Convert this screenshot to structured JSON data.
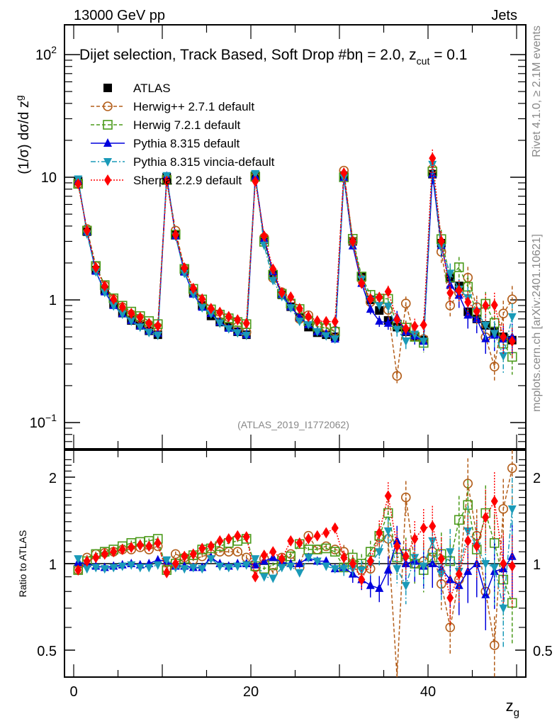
{
  "header": {
    "left_label": "13000 GeV pp",
    "right_label": "Jets"
  },
  "side_labels": {
    "rivet": "Rivet 4.1.0, ≥ 2.1M events",
    "mcplots": "mcplots.cern.ch [arXiv:2401.10621]"
  },
  "chart_data": [
    {
      "type": "line",
      "panel": "main",
      "title": "Dijet selection, Track Based, Soft Drop #bη = 2.0, z_cut = 0.1",
      "title_main": "Dijet selection, Track Based, Soft Drop #bη = 2.0, z",
      "title_sub": "cut",
      "title_end": " = 0.1",
      "xlabel": "z_g",
      "ylabel": "(1/σ) dσ/d z_g",
      "ylabel_main": "(1/σ) dσ/d z",
      "ylabel_sub": "g",
      "yscale": "log",
      "ylim": [
        0.06,
        180
      ],
      "xlim": [
        -1,
        51
      ],
      "ytick_labels": [
        "10^-1",
        "1",
        "10",
        "10^2"
      ],
      "ytick_values": [
        0.1,
        1,
        10,
        100
      ],
      "watermark": "(ATLAS_2019_I1772062)",
      "legend_position": "top-left",
      "x": [
        0.5,
        1.5,
        2.5,
        3.5,
        4.5,
        5.5,
        6.5,
        7.5,
        8.5,
        9.5,
        10.5,
        11.5,
        12.5,
        13.5,
        14.5,
        15.5,
        16.5,
        17.5,
        18.5,
        19.5,
        20.5,
        21.5,
        22.5,
        23.5,
        24.5,
        25.5,
        26.5,
        27.5,
        28.5,
        29.5,
        30.5,
        31.5,
        32.5,
        33.5,
        34.5,
        35.5,
        36.5,
        37.5,
        38.5,
        39.5,
        40.5,
        41.5,
        42.5,
        43.5,
        44.5,
        45.5,
        46.5,
        47.5,
        48.5,
        49.5
      ],
      "series": [
        {
          "name": "ATLAS",
          "style": "data",
          "color": "#000000",
          "values": [
            9.3,
            3.6,
            1.75,
            1.2,
            0.92,
            0.78,
            0.68,
            0.62,
            0.56,
            0.52,
            10.0,
            3.4,
            1.72,
            1.15,
            0.9,
            0.74,
            0.66,
            0.6,
            0.55,
            0.52,
            10.3,
            3.1,
            1.62,
            1.1,
            0.88,
            0.72,
            0.6,
            0.54,
            0.52,
            0.5,
            10.3,
            3.0,
            1.55,
            1.0,
            0.82,
            0.68,
            0.6,
            0.55,
            0.5,
            0.47,
            10.6,
            2.9,
            1.5,
            1.3,
            0.8,
            0.7,
            0.62,
            0.55,
            0.5,
            0.47
          ]
        },
        {
          "name": "Herwig++ 2.7.1 default",
          "style": "dashed",
          "marker": "circle-open",
          "color": "#b35e1a",
          "ratio": [
            0.95,
            1.05,
            1.08,
            1.09,
            1.1,
            1.12,
            1.12,
            1.14,
            1.12,
            1.15,
            0.96,
            1.08,
            1.05,
            1.03,
            1.06,
            1.08,
            1.1,
            1.1,
            1.1,
            1.05,
            0.97,
            1.04,
            0.93,
            1.05,
            1.08,
            0.97,
            1.25,
            1.12,
            1.15,
            1.12,
            1.1,
            1.0,
            0.95,
            0.96,
            1.23,
            1.22,
            0.4,
            1.7,
            1.0,
            1.02,
            1.1,
            0.85,
            0.6,
            0.88,
            1.9,
            1.25,
            0.8,
            0.52,
            1.55,
            2.15
          ]
        },
        {
          "name": "Herwig 7.2.1 default",
          "style": "dashed",
          "marker": "square-open",
          "color": "#4a9a1a",
          "ratio": [
            0.95,
            1.02,
            1.08,
            1.1,
            1.12,
            1.15,
            1.18,
            1.19,
            1.2,
            1.22,
            0.95,
            1.0,
            1.04,
            1.07,
            1.12,
            1.13,
            1.15,
            1.18,
            1.2,
            1.22,
            0.98,
            0.96,
            0.99,
            1.02,
            1.06,
            1.17,
            1.12,
            1.12,
            1.13,
            1.1,
            0.97,
            1.05,
            1.0,
            1.1,
            1.25,
            1.5,
            1.05,
            1.08,
            1.0,
            0.95,
            1.05,
            1.08,
            1.02,
            1.42,
            1.6,
            1.12,
            1.5,
            1.18,
            0.88,
            0.73
          ]
        },
        {
          "name": "Pythia 8.315 default",
          "style": "solid",
          "marker": "triangle-up",
          "color": "#0000dd",
          "ratio": [
            1.01,
            1.0,
            0.98,
            0.97,
            0.98,
            0.99,
            1.0,
            0.99,
            1.0,
            1.03,
            1.02,
            0.98,
            0.98,
            0.97,
            0.97,
            1.05,
            1.0,
            0.98,
            1.0,
            1.0,
            0.99,
            1.02,
            1.05,
            1.01,
            1.0,
            1.0,
            1.05,
            1.02,
            1.02,
            0.96,
            0.97,
            0.92,
            0.88,
            0.84,
            0.82,
            0.95,
            1.2,
            1.0,
            1.02,
            0.98,
            1.0,
            0.96,
            0.88,
            0.84,
            0.94,
            1.0,
            0.78,
            0.94,
            0.96,
            1.06
          ]
        },
        {
          "name": "Pythia 8.315 vincia-default",
          "style": "dashdot",
          "marker": "triangle-down",
          "color": "#1a9ab8",
          "ratio": [
            1.04,
            0.96,
            0.97,
            0.96,
            0.97,
            0.98,
            0.99,
            0.97,
            0.97,
            0.99,
            1.03,
            0.97,
            0.96,
            0.97,
            0.96,
            1.04,
            0.98,
            0.97,
            0.98,
            0.99,
            1.04,
            0.9,
            0.89,
            0.97,
            0.98,
            0.93,
            1.05,
            1.02,
            0.98,
            0.96,
            0.96,
            0.96,
            0.95,
            1.0,
            1.1,
            1.3,
            0.96,
            0.84,
            1.05,
            0.98,
            1.2,
            0.92,
            1.1,
            0.94,
            1.3,
            1.15,
            1.0,
            0.97,
            0.7,
            1.55
          ]
        },
        {
          "name": "Sherpa 2.2.9 default",
          "style": "dotted",
          "marker": "diamond",
          "color": "#ff0000",
          "ratio": [
            0.95,
            1.02,
            1.05,
            1.08,
            1.1,
            1.12,
            1.14,
            1.16,
            1.15,
            1.18,
            0.93,
            1.0,
            1.06,
            1.08,
            1.13,
            1.15,
            1.2,
            1.22,
            1.25,
            1.24,
            0.9,
            1.07,
            1.1,
            1.04,
            1.2,
            1.18,
            1.22,
            1.25,
            1.28,
            1.33,
            1.05,
            1.0,
            0.88,
            1.02,
            1.28,
            1.72,
            1.15,
            1.06,
            1.22,
            1.33,
            1.35,
            1.04,
            0.76,
            0.92,
            1.2,
            1.15,
            1.45,
            1.65,
            1.0,
            0.98
          ]
        }
      ]
    },
    {
      "type": "line",
      "panel": "ratio",
      "ylabel": "Ratio to ATLAS",
      "xlabel": "z_g",
      "yscale": "log",
      "ylim": [
        0.4,
        2.4
      ],
      "xlim": [
        -1,
        51
      ],
      "ytick_labels": [
        "0.5",
        "1",
        "2"
      ],
      "ytick_values": [
        0.5,
        1,
        2
      ],
      "xtick_labels": [
        "0",
        "20",
        "40"
      ],
      "xtick_values": [
        0,
        20,
        40
      ]
    }
  ]
}
